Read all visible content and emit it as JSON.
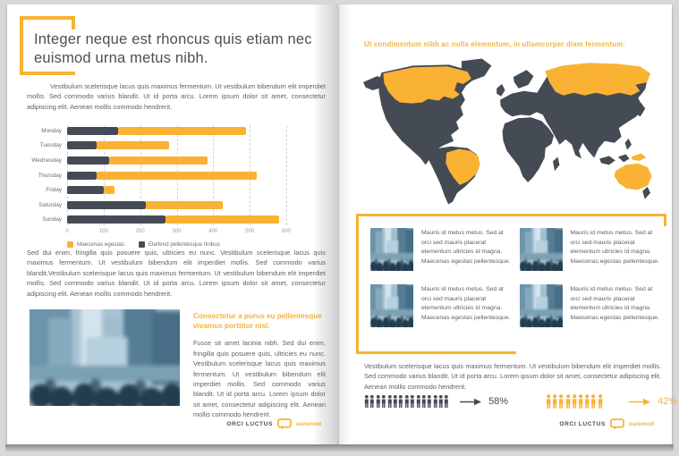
{
  "colors": {
    "accent": "#F9B233",
    "dark": "#454B54",
    "body_text": "#5d6267",
    "photo_tint": "#7fa3b8"
  },
  "left_page": {
    "heading": "Integer neque est rhoncus quis etiam nec euismod urna metus nibh.",
    "intro": "Vestibulum scelerisque lacus quis maximus fermentum. Ut vestibulum bibendum elit imperdiet mollis. Sed commodo varius blandit. Ut id porta arcu. Lorem ipsum dolor sit amet, consectetur adipiscing elit. Aenean mollis commodo hendrerit.",
    "body": "Sed dui enim, fringilla quis posuere quis, ultricies eu nunc. Vestibulum scelerisque lacus quis maximus fermentum. Ut vestibulum bibendum elit imperdiet mollis. Sed commodo varius blandit.Vestibulum scelerisque lacus quis maximus fermentum. Ut vestibulum bibendum elit imperdiet mollis. Sed commodo varius blandit. Ut id porta arcu. Lorem ipsum dolor sit amet, consectetur adipiscing elit. Aenean mollis commodo hendrerit.",
    "feature": {
      "heading": "Consectetur a purus eu pellentesque vivamus porttitor nisl.",
      "body": "Fusce sit amet lacinia nibh. Sed dui enim, fringilla quis posuere quis, ultricies eu nunc. Vestibulum scelerisque lacus quis maximus fermentum. Ut vestibulum bibendum elit imperdiet mollis. Sed commodo varius blandit. Ut id porta arcu. Lorem ipsum dolor sit amet, consectetur adipiscing elit. Aenean mollis commodo hendrerit."
    }
  },
  "right_page": {
    "heading": "Ut condimentum nibh ac nulla elementum, in ullamcorper diam fermentum.",
    "map": {
      "base_color": "#454B54",
      "highlight_color": "#F9B233",
      "highlighted_regions": [
        "Canada",
        "Russia",
        "Brazil",
        "Australia",
        "New Guinea"
      ]
    },
    "callout_items": [
      "Mauris id metus metus. Sed at orci sed mauris placerat elementum ultricies id magna. Maecenas egestas pellentesque.",
      "Mauris id metus metus. Sed at orci sed mauris placerat elementum ultricies id magna. Maecenas egestas pellentesque.",
      "Mauris id metus metus. Sed at orci sed mauris placerat elementum ultricies id magna. Maecenas egestas pellentesque.",
      "Mauris id metus metus. Sed at orci sed mauris placerat elementum ultricies id magna. Maecenas egestas pellentesque."
    ],
    "body": "Vestibulum scelerisque lacus quis maximus fermentum. Ut vestibulum bibendum elit imperdiet mollis. Sed commodo varius blandit. Ut id porta arcu. Lorem ipsum dolor sit amet, consectetur adipiscing elit. Aenean mollis commodo hendrerit."
  },
  "footer": {
    "brand": "ORCI LUCTUS",
    "accent": "euismod"
  },
  "chart_data": [
    {
      "type": "bar",
      "orientation": "horizontal",
      "stacked": true,
      "title": "",
      "categories": [
        "Monday",
        "Tuesday",
        "Wednesday",
        "Thursday",
        "Friday",
        "Saturday",
        "Sunday"
      ],
      "series": [
        {
          "name": "Eleifend pellentesque finibus",
          "color": "#454B54",
          "values": [
            140,
            80,
            115,
            80,
            100,
            215,
            270
          ]
        },
        {
          "name": "Maecenas egestas",
          "color": "#F9B233",
          "values": [
            350,
            200,
            270,
            440,
            30,
            210,
            310
          ]
        }
      ],
      "totals": [
        490,
        280,
        385,
        520,
        130,
        425,
        580
      ],
      "legend": [
        {
          "label": "Maecenas egestas",
          "color": "#F9B233"
        },
        {
          "label": "Eleifend pellentesque finibus",
          "color": "#454B54"
        }
      ],
      "x_ticks": [
        0,
        100,
        200,
        300,
        400,
        500,
        600
      ],
      "xlim": [
        0,
        600
      ],
      "grid": "dashed-vertical",
      "legend_position": "bottom-left"
    },
    {
      "type": "pictograph",
      "icon": "person-icon",
      "groups": [
        {
          "value": "58%",
          "count": 15,
          "color": "#454B54"
        },
        {
          "value": "42%",
          "count": 9,
          "color": "#F9B233"
        }
      ]
    }
  ]
}
